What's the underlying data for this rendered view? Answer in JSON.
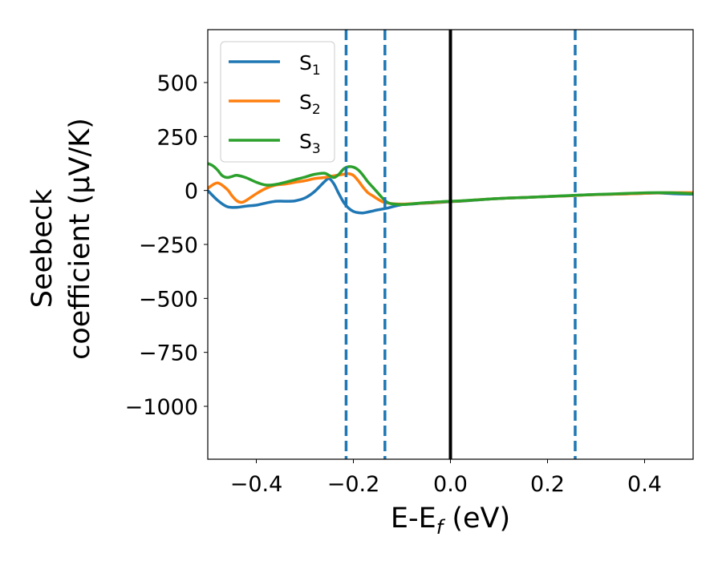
{
  "chart_data": {
    "type": "line",
    "title": "",
    "xlabel": "E-E_f (eV)",
    "xlabel_parts": {
      "main": "E-E",
      "sub": "f",
      "unit": " (eV)"
    },
    "ylabel_lines": [
      "Seebeck",
      "coefficient  (μV/K)"
    ],
    "xlim": [
      -0.5,
      0.5
    ],
    "ylim": [
      -1245,
      745
    ],
    "xticks": [
      -0.4,
      -0.2,
      0.0,
      0.2,
      0.4
    ],
    "xtick_labels": [
      "−0.4",
      "−0.2",
      "0.0",
      "0.2",
      "0.4"
    ],
    "yticks": [
      500,
      250,
      0,
      -250,
      -500,
      -750,
      -1000
    ],
    "ytick_labels": [
      "500",
      "250",
      "0",
      "−250",
      "−500",
      "−750",
      "−1000"
    ],
    "grid": false,
    "legend_position": "upper-left",
    "vlines": [
      {
        "x": -0.215,
        "style": "dashed",
        "color": "#1f77b4"
      },
      {
        "x": -0.135,
        "style": "dashed",
        "color": "#1f77b4"
      },
      {
        "x": 0.0,
        "style": "solid",
        "color": "#000000"
      },
      {
        "x": 0.257,
        "style": "dashed",
        "color": "#1f77b4"
      }
    ],
    "series": [
      {
        "name": "S_1",
        "label_main": "S",
        "label_sub": "1",
        "color": "#1f77b4",
        "x": [
          -0.5,
          -0.48,
          -0.46,
          -0.44,
          -0.42,
          -0.4,
          -0.38,
          -0.36,
          -0.34,
          -0.32,
          -0.3,
          -0.28,
          -0.26,
          -0.25,
          -0.24,
          -0.23,
          -0.22,
          -0.21,
          -0.2,
          -0.19,
          -0.18,
          -0.17,
          -0.16,
          -0.15,
          -0.14,
          -0.13,
          -0.12,
          -0.1,
          -0.08,
          -0.06,
          -0.04,
          -0.02,
          0.0,
          0.02,
          0.05,
          0.08,
          0.12,
          0.16,
          0.2,
          0.24,
          0.28,
          0.32,
          0.36,
          0.4,
          0.43,
          0.46,
          0.5
        ],
        "y": [
          0,
          -45,
          -75,
          -78,
          -72,
          -68,
          -58,
          -50,
          -50,
          -48,
          -35,
          -5,
          40,
          55,
          30,
          -15,
          -55,
          -82,
          -97,
          -103,
          -104,
          -100,
          -95,
          -90,
          -86,
          -82,
          -76,
          -66,
          -63,
          -60,
          -58,
          -55,
          -52,
          -50,
          -45,
          -40,
          -35,
          -32,
          -28,
          -25,
          -20,
          -18,
          -16,
          -13,
          -12,
          -15,
          -17
        ]
      },
      {
        "name": "S_2",
        "label_main": "S",
        "label_sub": "2",
        "color": "#ff7f0e",
        "x": [
          -0.5,
          -0.48,
          -0.46,
          -0.45,
          -0.44,
          -0.43,
          -0.42,
          -0.4,
          -0.38,
          -0.36,
          -0.34,
          -0.32,
          -0.3,
          -0.28,
          -0.26,
          -0.24,
          -0.22,
          -0.21,
          -0.2,
          -0.19,
          -0.18,
          -0.17,
          -0.16,
          -0.15,
          -0.14,
          -0.13,
          -0.12,
          -0.1,
          -0.08,
          -0.06,
          -0.04,
          -0.02,
          0.0,
          0.02,
          0.05,
          0.08,
          0.12,
          0.16,
          0.2,
          0.24,
          0.28,
          0.32,
          0.36,
          0.4,
          0.43,
          0.46,
          0.5
        ],
        "y": [
          10,
          35,
          5,
          -25,
          -48,
          -55,
          -45,
          -15,
          10,
          25,
          30,
          38,
          45,
          55,
          60,
          68,
          75,
          78,
          70,
          45,
          15,
          -10,
          -25,
          -40,
          -52,
          -58,
          -61,
          -63,
          -61,
          -59,
          -57,
          -54,
          -51,
          -49,
          -44,
          -40,
          -35,
          -32,
          -28,
          -25,
          -21,
          -18,
          -16,
          -13,
          -11,
          -10,
          -10
        ]
      },
      {
        "name": "S_3",
        "label_main": "S",
        "label_sub": "3",
        "color": "#2ca02c",
        "x": [
          -0.5,
          -0.49,
          -0.48,
          -0.47,
          -0.46,
          -0.45,
          -0.44,
          -0.42,
          -0.4,
          -0.38,
          -0.36,
          -0.34,
          -0.32,
          -0.3,
          -0.28,
          -0.26,
          -0.25,
          -0.24,
          -0.23,
          -0.22,
          -0.21,
          -0.2,
          -0.19,
          -0.18,
          -0.17,
          -0.16,
          -0.15,
          -0.14,
          -0.13,
          -0.12,
          -0.1,
          -0.08,
          -0.06,
          -0.04,
          -0.02,
          0.0,
          0.02,
          0.05,
          0.08,
          0.12,
          0.16,
          0.2,
          0.24,
          0.28,
          0.32,
          0.36,
          0.4,
          0.43,
          0.46,
          0.5
        ],
        "y": [
          125,
          115,
          95,
          68,
          60,
          65,
          70,
          58,
          38,
          25,
          28,
          38,
          50,
          62,
          75,
          80,
          70,
          60,
          75,
          100,
          110,
          108,
          95,
          70,
          40,
          15,
          -10,
          -35,
          -55,
          -62,
          -65,
          -62,
          -58,
          -55,
          -52,
          -50,
          -48,
          -44,
          -40,
          -35,
          -32,
          -28,
          -24,
          -20,
          -17,
          -14,
          -11,
          -10,
          -11,
          -15
        ]
      }
    ]
  }
}
